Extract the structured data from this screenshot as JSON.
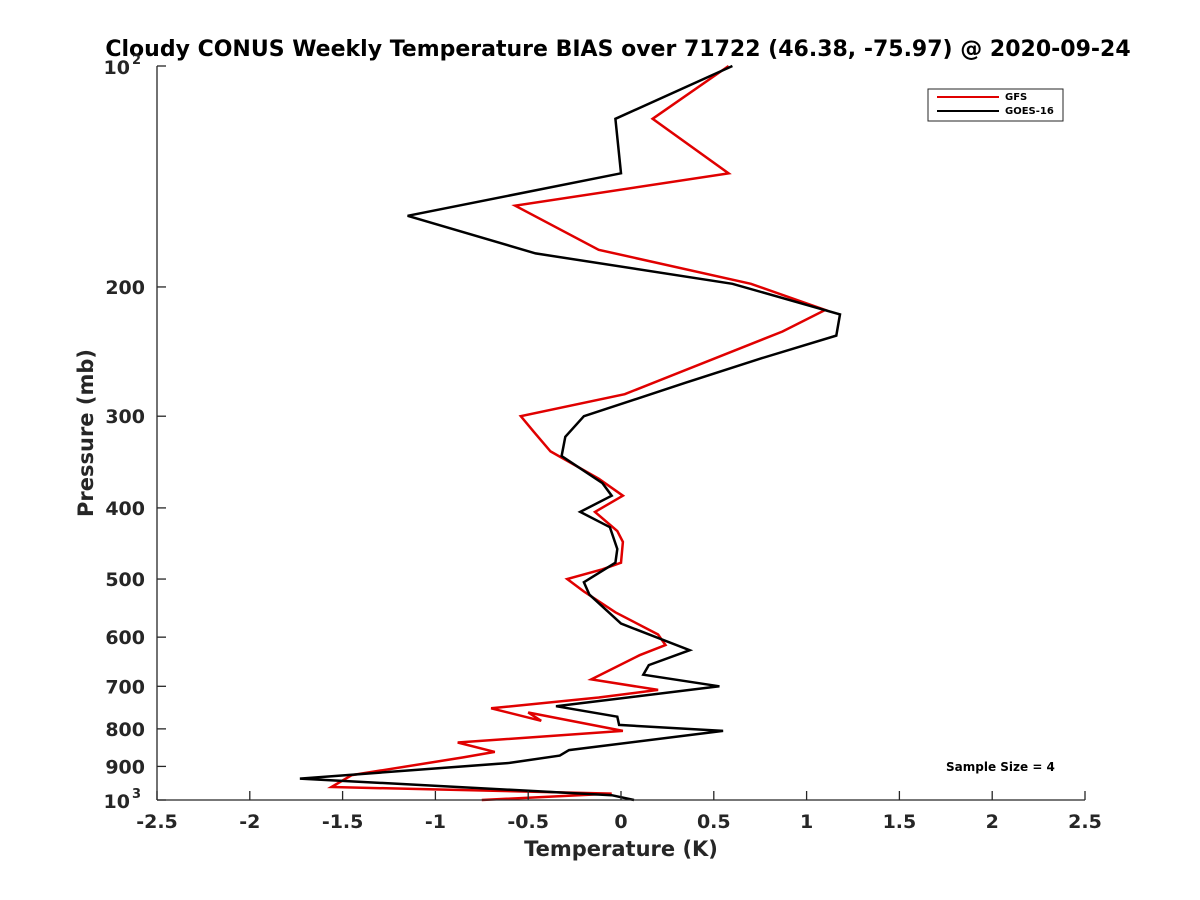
{
  "chart_data": {
    "type": "line",
    "title": "Cloudy CONUS Weekly Temperature BIAS over 71722 (46.38, -75.97) @ 2020-09-24",
    "xlabel": "Temperature (K)",
    "ylabel": "Pressure (mb)",
    "xlim": [
      -2.5,
      2.5
    ],
    "ylim": [
      1000,
      100
    ],
    "y_scale": "log",
    "y_reversed": true,
    "grid": false,
    "x_ticks": [
      "-2.5",
      "-2",
      "-1.5",
      "-1",
      "-0.5",
      "0",
      "0.5",
      "1",
      "1.5",
      "2",
      "2.5"
    ],
    "x_tick_values": [
      -2.5,
      -2,
      -1.5,
      -1,
      -0.5,
      0,
      0.5,
      1,
      1.5,
      2,
      2.5
    ],
    "y_ticks": [
      {
        "value": 100,
        "base": "10",
        "exp": "2"
      },
      {
        "value": 200,
        "label": "200"
      },
      {
        "value": 300,
        "label": "300"
      },
      {
        "value": 400,
        "label": "400"
      },
      {
        "value": 500,
        "label": "500"
      },
      {
        "value": 600,
        "label": "600"
      },
      {
        "value": 700,
        "label": "700"
      },
      {
        "value": 800,
        "label": "800"
      },
      {
        "value": 900,
        "label": "900"
      },
      {
        "value": 1000,
        "base": "10",
        "exp": "3"
      }
    ],
    "legend_position": "top-right",
    "annotation": "Sample Size = 4",
    "series": [
      {
        "name": "GFS",
        "color": "#e00000",
        "x": [
          0.58,
          0.17,
          0.58,
          -0.57,
          -0.12,
          0.7,
          1.1,
          0.87,
          0.02,
          -0.54,
          -0.47,
          -0.38,
          -0.12,
          0.01,
          -0.14,
          -0.02,
          0.01,
          0.0,
          -0.1,
          -0.29,
          -0.2,
          -0.03,
          0.2,
          0.24,
          0.1,
          -0.16,
          0.2,
          -0.12,
          -0.7,
          -0.43,
          -0.5,
          0.01,
          -0.88,
          -0.68,
          -0.85,
          -1.45,
          -1.56,
          -0.05,
          -0.75
        ],
        "y": [
          100,
          118,
          140,
          155,
          178,
          198,
          215,
          230,
          280,
          300,
          315,
          335,
          365,
          385,
          405,
          430,
          445,
          475,
          485,
          500,
          520,
          555,
          595,
          615,
          635,
          685,
          708,
          725,
          750,
          780,
          760,
          805,
          835,
          860,
          875,
          925,
          960,
          980,
          1000
        ]
      },
      {
        "name": "GOES-16",
        "color": "#000000",
        "x": [
          0.6,
          -0.03,
          0.0,
          -1.15,
          -0.46,
          0.6,
          1.18,
          1.16,
          0.76,
          0.35,
          -0.2,
          -0.3,
          -0.32,
          -0.1,
          -0.05,
          -0.22,
          -0.06,
          -0.02,
          -0.03,
          -0.2,
          -0.17,
          0.0,
          0.37,
          0.15,
          0.12,
          0.53,
          -0.35,
          -0.02,
          -0.01,
          0.55,
          -0.28,
          -0.33,
          -0.6,
          -1.73,
          -0.05,
          0.07
        ],
        "y": [
          100,
          118,
          140,
          160,
          180,
          198,
          218,
          233,
          250,
          270,
          300,
          320,
          340,
          370,
          385,
          405,
          425,
          455,
          475,
          505,
          525,
          575,
          625,
          655,
          675,
          700,
          745,
          770,
          790,
          805,
          855,
          870,
          890,
          935,
          985,
          1000
        ]
      }
    ]
  }
}
